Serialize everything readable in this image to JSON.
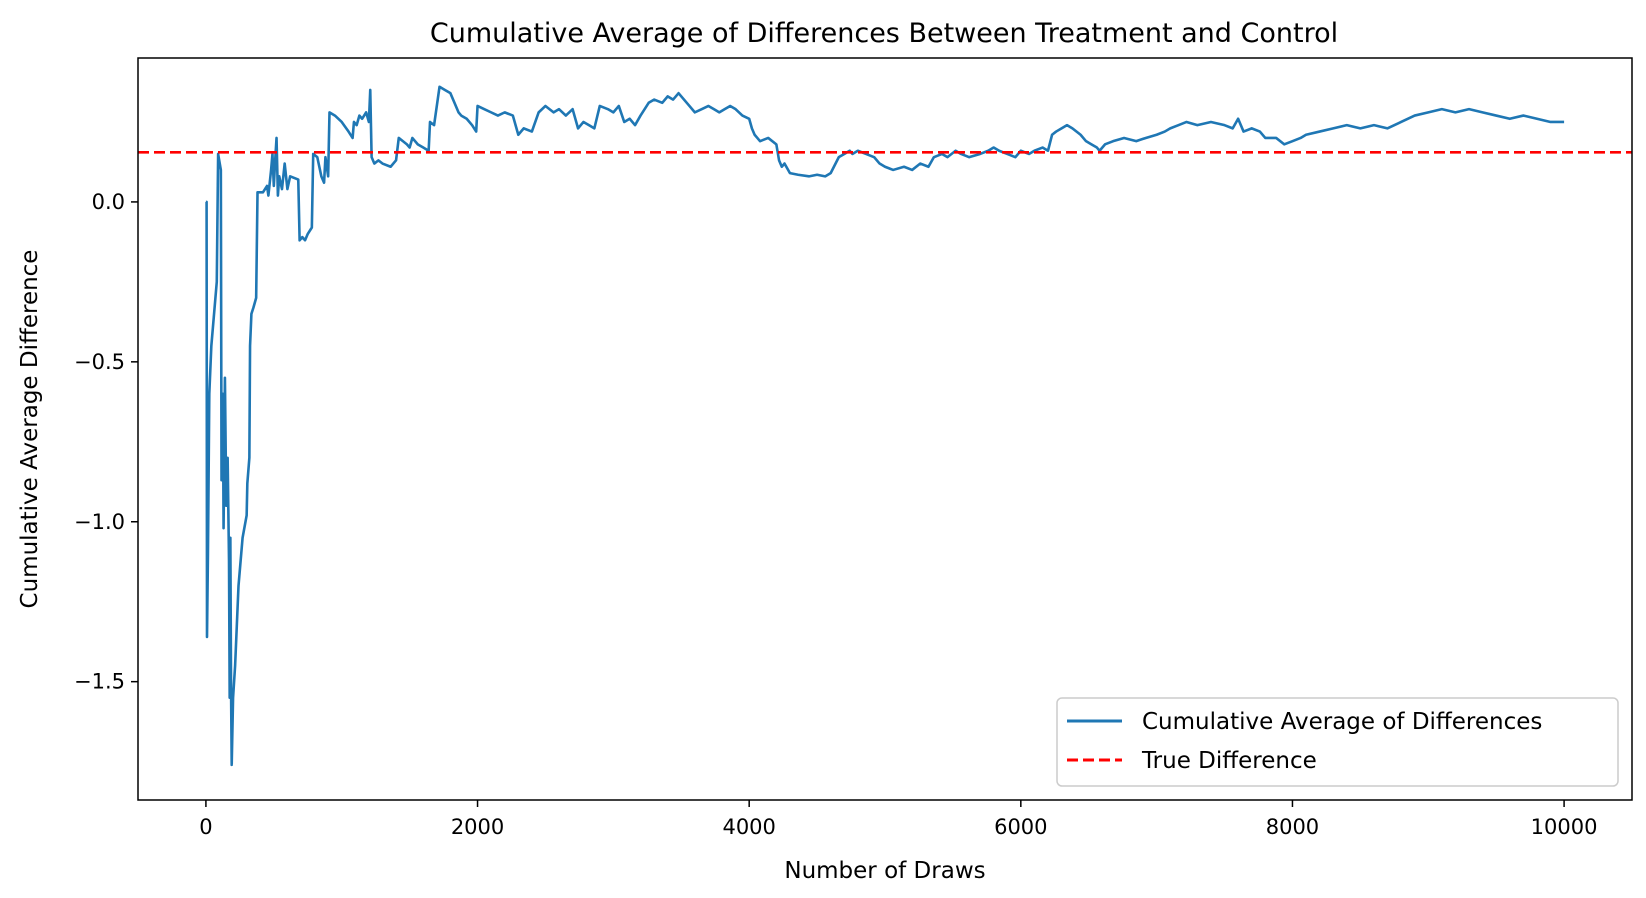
{
  "chart_data": {
    "type": "line",
    "title": "Cumulative Average of Differences Between Treatment and Control",
    "xlabel": "Number of Draws",
    "ylabel": "Cumulative Average Difference",
    "xlim": [
      -500,
      10500
    ],
    "ylim": [
      -1.87,
      0.45
    ],
    "x_ticks": [
      0,
      2000,
      4000,
      6000,
      8000,
      10000
    ],
    "x_tick_labels": [
      "0",
      "2000",
      "4000",
      "6000",
      "8000",
      "10000"
    ],
    "y_ticks": [
      0.0,
      -0.5,
      -1.0,
      -1.5
    ],
    "y_tick_labels": [
      "0.0",
      "−0.5",
      "−1.0",
      "−1.5"
    ],
    "grid": false,
    "legend_position": "lower right",
    "series": [
      {
        "name": "Cumulative Average of Differences",
        "color": "#1f77b4",
        "style": "solid",
        "points": [
          [
            0,
            0.0
          ],
          [
            5,
            0.0
          ],
          [
            8,
            -1.36
          ],
          [
            15,
            -1.1
          ],
          [
            25,
            -0.6
          ],
          [
            40,
            -0.45
          ],
          [
            60,
            -0.35
          ],
          [
            80,
            -0.25
          ],
          [
            90,
            0.15
          ],
          [
            110,
            0.1
          ],
          [
            115,
            -0.87
          ],
          [
            125,
            -0.6
          ],
          [
            130,
            -1.02
          ],
          [
            140,
            -0.55
          ],
          [
            150,
            -0.95
          ],
          [
            155,
            -0.88
          ],
          [
            160,
            -0.8
          ],
          [
            170,
            -1.12
          ],
          [
            175,
            -1.55
          ],
          [
            180,
            -1.05
          ],
          [
            185,
            -1.52
          ],
          [
            190,
            -1.76
          ],
          [
            200,
            -1.55
          ],
          [
            215,
            -1.45
          ],
          [
            240,
            -1.2
          ],
          [
            270,
            -1.05
          ],
          [
            300,
            -0.98
          ],
          [
            305,
            -0.88
          ],
          [
            320,
            -0.8
          ],
          [
            325,
            -0.45
          ],
          [
            335,
            -0.35
          ],
          [
            350,
            -0.33
          ],
          [
            370,
            -0.3
          ],
          [
            380,
            0.03
          ],
          [
            420,
            0.03
          ],
          [
            450,
            0.05
          ],
          [
            460,
            0.02
          ],
          [
            480,
            0.1
          ],
          [
            490,
            0.15
          ],
          [
            500,
            0.05
          ],
          [
            510,
            0.13
          ],
          [
            520,
            0.2
          ],
          [
            530,
            0.02
          ],
          [
            540,
            0.08
          ],
          [
            560,
            0.04
          ],
          [
            580,
            0.12
          ],
          [
            600,
            0.04
          ],
          [
            620,
            0.08
          ],
          [
            680,
            0.07
          ],
          [
            690,
            -0.12
          ],
          [
            710,
            -0.11
          ],
          [
            730,
            -0.12
          ],
          [
            750,
            -0.1
          ],
          [
            780,
            -0.08
          ],
          [
            790,
            0.15
          ],
          [
            820,
            0.14
          ],
          [
            850,
            0.08
          ],
          [
            870,
            0.06
          ],
          [
            880,
            0.14
          ],
          [
            900,
            0.08
          ],
          [
            910,
            0.28
          ],
          [
            950,
            0.27
          ],
          [
            1000,
            0.25
          ],
          [
            1050,
            0.22
          ],
          [
            1080,
            0.2
          ],
          [
            1090,
            0.25
          ],
          [
            1110,
            0.24
          ],
          [
            1130,
            0.27
          ],
          [
            1150,
            0.26
          ],
          [
            1180,
            0.28
          ],
          [
            1200,
            0.25
          ],
          [
            1210,
            0.35
          ],
          [
            1220,
            0.14
          ],
          [
            1240,
            0.12
          ],
          [
            1270,
            0.13
          ],
          [
            1300,
            0.12
          ],
          [
            1360,
            0.11
          ],
          [
            1400,
            0.13
          ],
          [
            1420,
            0.2
          ],
          [
            1450,
            0.19
          ],
          [
            1480,
            0.18
          ],
          [
            1500,
            0.17
          ],
          [
            1520,
            0.2
          ],
          [
            1560,
            0.18
          ],
          [
            1600,
            0.17
          ],
          [
            1640,
            0.16
          ],
          [
            1650,
            0.25
          ],
          [
            1680,
            0.24
          ],
          [
            1720,
            0.36
          ],
          [
            1760,
            0.35
          ],
          [
            1800,
            0.34
          ],
          [
            1830,
            0.31
          ],
          [
            1860,
            0.28
          ],
          [
            1880,
            0.27
          ],
          [
            1920,
            0.26
          ],
          [
            1960,
            0.24
          ],
          [
            1990,
            0.22
          ],
          [
            2000,
            0.3
          ],
          [
            2050,
            0.29
          ],
          [
            2100,
            0.28
          ],
          [
            2150,
            0.27
          ],
          [
            2200,
            0.28
          ],
          [
            2260,
            0.27
          ],
          [
            2300,
            0.21
          ],
          [
            2340,
            0.23
          ],
          [
            2400,
            0.22
          ],
          [
            2450,
            0.28
          ],
          [
            2500,
            0.3
          ],
          [
            2560,
            0.28
          ],
          [
            2600,
            0.29
          ],
          [
            2650,
            0.27
          ],
          [
            2700,
            0.29
          ],
          [
            2740,
            0.23
          ],
          [
            2780,
            0.25
          ],
          [
            2820,
            0.24
          ],
          [
            2860,
            0.23
          ],
          [
            2900,
            0.3
          ],
          [
            2960,
            0.29
          ],
          [
            3000,
            0.28
          ],
          [
            3040,
            0.3
          ],
          [
            3080,
            0.25
          ],
          [
            3120,
            0.26
          ],
          [
            3160,
            0.24
          ],
          [
            3200,
            0.27
          ],
          [
            3260,
            0.31
          ],
          [
            3300,
            0.32
          ],
          [
            3360,
            0.31
          ],
          [
            3400,
            0.33
          ],
          [
            3440,
            0.32
          ],
          [
            3480,
            0.34
          ],
          [
            3520,
            0.32
          ],
          [
            3560,
            0.3
          ],
          [
            3600,
            0.28
          ],
          [
            3650,
            0.29
          ],
          [
            3700,
            0.3
          ],
          [
            3740,
            0.29
          ],
          [
            3780,
            0.28
          ],
          [
            3820,
            0.29
          ],
          [
            3860,
            0.3
          ],
          [
            3900,
            0.29
          ],
          [
            3950,
            0.27
          ],
          [
            4000,
            0.26
          ],
          [
            4020,
            0.23
          ],
          [
            4040,
            0.21
          ],
          [
            4060,
            0.2
          ],
          [
            4080,
            0.19
          ],
          [
            4140,
            0.2
          ],
          [
            4200,
            0.18
          ],
          [
            4220,
            0.13
          ],
          [
            4240,
            0.11
          ],
          [
            4260,
            0.12
          ],
          [
            4300,
            0.09
          ],
          [
            4360,
            0.085
          ],
          [
            4440,
            0.08
          ],
          [
            4500,
            0.085
          ],
          [
            4560,
            0.08
          ],
          [
            4600,
            0.09
          ],
          [
            4660,
            0.14
          ],
          [
            4700,
            0.15
          ],
          [
            4740,
            0.16
          ],
          [
            4760,
            0.15
          ],
          [
            4800,
            0.16
          ],
          [
            4860,
            0.15
          ],
          [
            4920,
            0.14
          ],
          [
            4960,
            0.12
          ],
          [
            5000,
            0.11
          ],
          [
            5060,
            0.1
          ],
          [
            5140,
            0.11
          ],
          [
            5200,
            0.1
          ],
          [
            5260,
            0.12
          ],
          [
            5320,
            0.11
          ],
          [
            5360,
            0.14
          ],
          [
            5420,
            0.15
          ],
          [
            5460,
            0.14
          ],
          [
            5520,
            0.16
          ],
          [
            5560,
            0.15
          ],
          [
            5620,
            0.14
          ],
          [
            5700,
            0.15
          ],
          [
            5760,
            0.16
          ],
          [
            5800,
            0.17
          ],
          [
            5840,
            0.16
          ],
          [
            5900,
            0.15
          ],
          [
            5960,
            0.14
          ],
          [
            6000,
            0.16
          ],
          [
            6060,
            0.15
          ],
          [
            6100,
            0.16
          ],
          [
            6160,
            0.17
          ],
          [
            6200,
            0.16
          ],
          [
            6230,
            0.21
          ],
          [
            6260,
            0.22
          ],
          [
            6300,
            0.23
          ],
          [
            6340,
            0.24
          ],
          [
            6380,
            0.23
          ],
          [
            6440,
            0.21
          ],
          [
            6480,
            0.19
          ],
          [
            6520,
            0.18
          ],
          [
            6560,
            0.17
          ],
          [
            6580,
            0.16
          ],
          [
            6620,
            0.18
          ],
          [
            6680,
            0.19
          ],
          [
            6760,
            0.2
          ],
          [
            6850,
            0.19
          ],
          [
            6920,
            0.2
          ],
          [
            7000,
            0.21
          ],
          [
            7060,
            0.22
          ],
          [
            7100,
            0.23
          ],
          [
            7160,
            0.24
          ],
          [
            7220,
            0.25
          ],
          [
            7300,
            0.24
          ],
          [
            7400,
            0.25
          ],
          [
            7500,
            0.24
          ],
          [
            7560,
            0.23
          ],
          [
            7600,
            0.26
          ],
          [
            7640,
            0.22
          ],
          [
            7700,
            0.23
          ],
          [
            7760,
            0.22
          ],
          [
            7800,
            0.2
          ],
          [
            7880,
            0.2
          ],
          [
            7940,
            0.18
          ],
          [
            8000,
            0.19
          ],
          [
            8060,
            0.2
          ],
          [
            8100,
            0.21
          ],
          [
            8200,
            0.22
          ],
          [
            8300,
            0.23
          ],
          [
            8400,
            0.24
          ],
          [
            8500,
            0.23
          ],
          [
            8600,
            0.24
          ],
          [
            8700,
            0.23
          ],
          [
            8800,
            0.25
          ],
          [
            8900,
            0.27
          ],
          [
            9000,
            0.28
          ],
          [
            9100,
            0.29
          ],
          [
            9200,
            0.28
          ],
          [
            9300,
            0.29
          ],
          [
            9400,
            0.28
          ],
          [
            9500,
            0.27
          ],
          [
            9600,
            0.26
          ],
          [
            9700,
            0.27
          ],
          [
            9800,
            0.26
          ],
          [
            9900,
            0.25
          ],
          [
            10000,
            0.25
          ]
        ]
      },
      {
        "name": "True Difference",
        "color": "#ff0000",
        "style": "dashed",
        "y": 0.155
      }
    ]
  }
}
